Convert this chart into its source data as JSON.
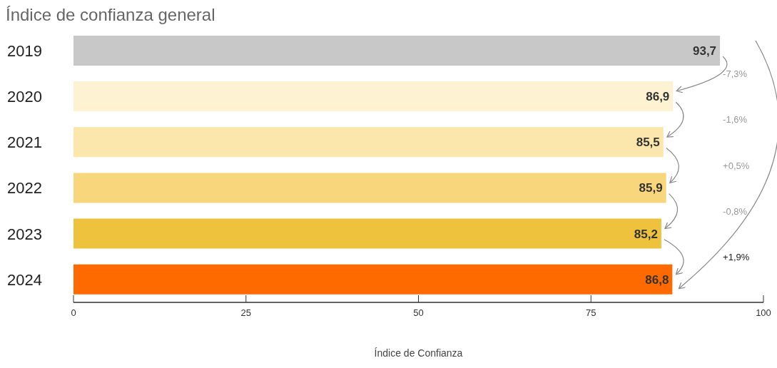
{
  "chart_data": {
    "type": "bar",
    "orientation": "horizontal",
    "title": "Índice de confianza general",
    "xlabel": "Índice de Confianza",
    "categories": [
      "2019",
      "2020",
      "2021",
      "2022",
      "2023",
      "2024"
    ],
    "values": [
      93.7,
      86.9,
      85.5,
      85.9,
      85.2,
      86.8
    ],
    "colors": [
      "#c8c8c8",
      "#fdf2d2",
      "#fbe7ac",
      "#f8d67c",
      "#efc23e",
      "#ff6a00"
    ],
    "value_labels": [
      "93,7",
      "86,9",
      "85,5",
      "85,9",
      "85,2",
      "86,8"
    ],
    "xlim": [
      0,
      100
    ],
    "xticks": [
      0,
      25,
      50,
      75,
      100
    ],
    "annotations": [
      "-7,3%",
      "-1,6%",
      "+0,5%",
      "-0,8%",
      "+1,9%"
    ]
  }
}
